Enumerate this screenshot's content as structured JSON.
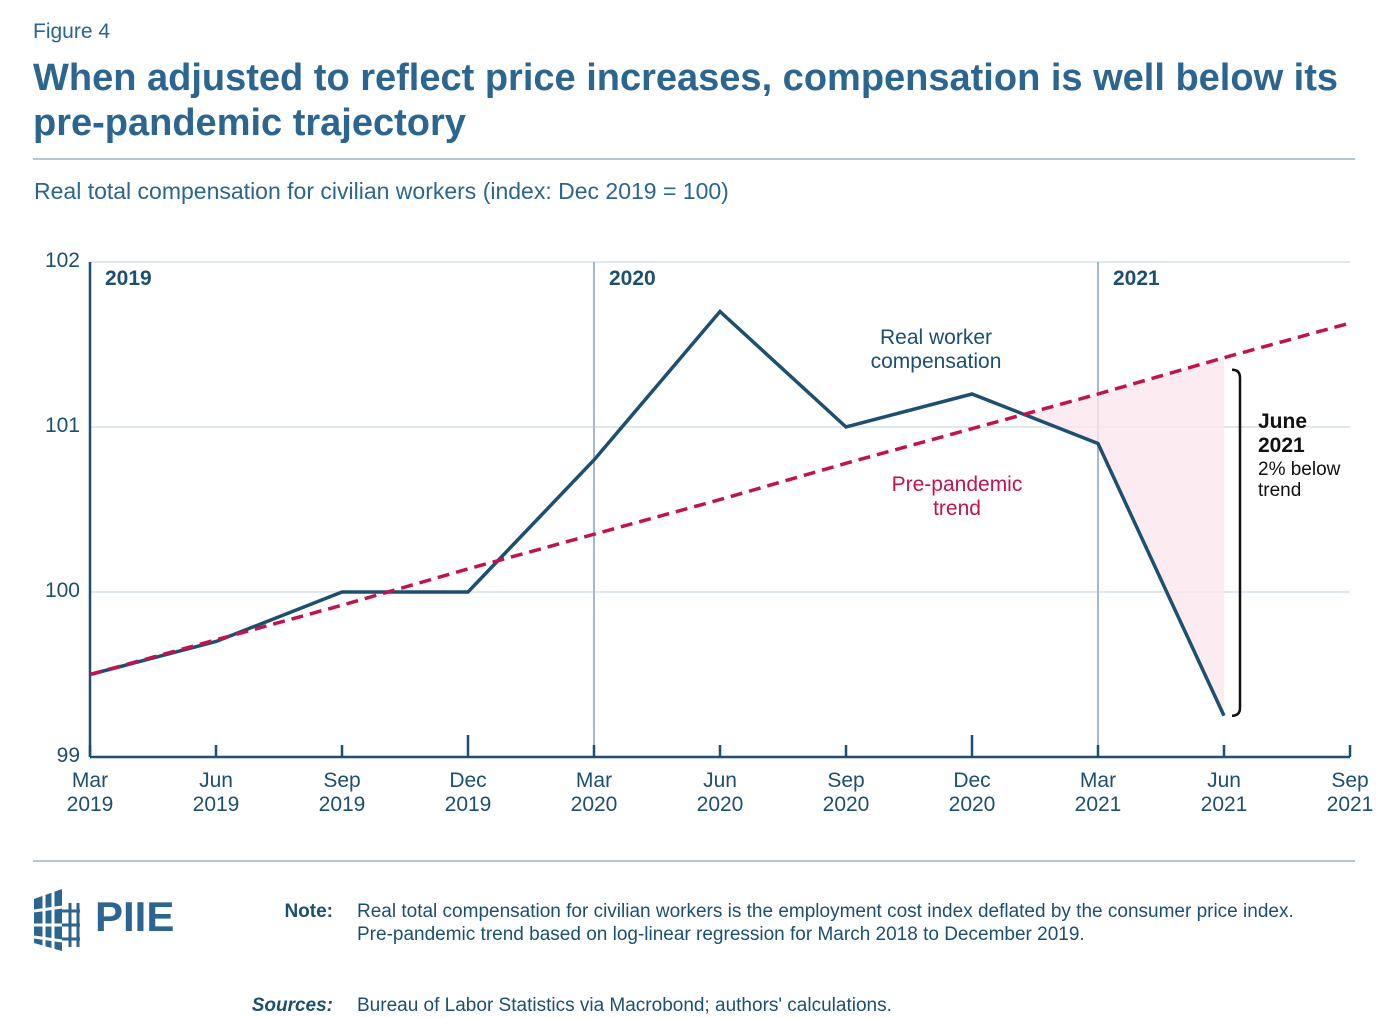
{
  "figure_label": "Figure 4",
  "chart_data": {
    "type": "line",
    "title": "When adjusted to reflect price increases, compensation is well below its pre-pandemic trajectory",
    "subtitle": "Real total compensation for civilian workers (index: Dec 2019 = 100)",
    "categories": [
      "Mar 2019",
      "Jun 2019",
      "Sep 2019",
      "Dec 2019",
      "Mar 2020",
      "Jun 2020",
      "Sep 2020",
      "Dec 2020",
      "Mar 2021",
      "Jun 2021",
      "Sep 2021"
    ],
    "series": [
      {
        "name": "Real worker compensation",
        "color": "#1d4f70",
        "style": "solid",
        "values": [
          99.5,
          99.7,
          100.0,
          100.0,
          100.8,
          101.7,
          101.0,
          101.2,
          100.9,
          99.25,
          null
        ]
      },
      {
        "name": "Pre-pandemic trend",
        "color": "#c0134f",
        "style": "dashed",
        "values": [
          99.5,
          99.71,
          99.92,
          100.14,
          100.35,
          100.56,
          100.78,
          100.99,
          101.2,
          101.42,
          101.63
        ]
      }
    ],
    "ylim": [
      99,
      102
    ],
    "yticks": [
      99,
      100,
      101,
      102
    ],
    "grid": true,
    "periods": [
      {
        "label": "2019",
        "start": "Mar 2019"
      },
      {
        "label": "2020",
        "start": "Mar 2020"
      },
      {
        "label": "2021",
        "start": "Mar 2021"
      }
    ],
    "annotation": {
      "title": "June 2021",
      "text": "2% below trend",
      "at": "Jun 2021"
    }
  },
  "footer": {
    "logo": "PIIE",
    "note_label": "Note:",
    "note": "Real total compensation for civilian workers is the employment cost index deflated by the consumer price index. Pre-pandemic trend based on log-linear regression for March 2018 to December 2019.",
    "sources_label": "Sources:",
    "sources": "Bureau of Labor Statistics via Macrobond; authors' calculations."
  }
}
